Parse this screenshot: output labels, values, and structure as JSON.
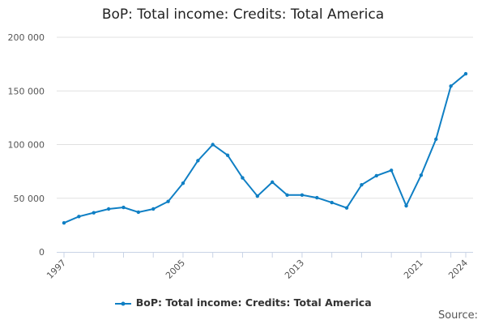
{
  "chart_data": {
    "type": "line",
    "title": "BoP: Total income: Credits: Total America",
    "xlabel": "",
    "ylabel": "",
    "x": [
      1997,
      1998,
      1999,
      2000,
      2001,
      2002,
      2003,
      2004,
      2005,
      2006,
      2007,
      2008,
      2009,
      2010,
      2011,
      2012,
      2013,
      2014,
      2015,
      2016,
      2017,
      2018,
      2019,
      2020,
      2021,
      2022,
      2023,
      2024
    ],
    "series": [
      {
        "name": "BoP: Total income: Credits: Total America",
        "color": "#0f7fc4",
        "values": [
          27000,
          33000,
          36500,
          40000,
          41500,
          37000,
          40000,
          47000,
          64000,
          85000,
          100000,
          90000,
          69000,
          52000,
          65000,
          53000,
          53000,
          50500,
          46000,
          41000,
          62500,
          71000,
          76000,
          43000,
          71500,
          105000,
          154500,
          166000
        ]
      }
    ],
    "ylim": [
      0,
      200000
    ],
    "yticks": [
      0,
      50000,
      100000,
      150000,
      200000
    ],
    "ytick_labels": [
      "0",
      "50 000",
      "100 000",
      "150 000",
      "200 000"
    ],
    "xtick_labels": [
      "1997",
      "2005",
      "2013",
      "2021",
      "2024"
    ],
    "grid": true,
    "legend": "bottom"
  },
  "source_label": "Source:"
}
